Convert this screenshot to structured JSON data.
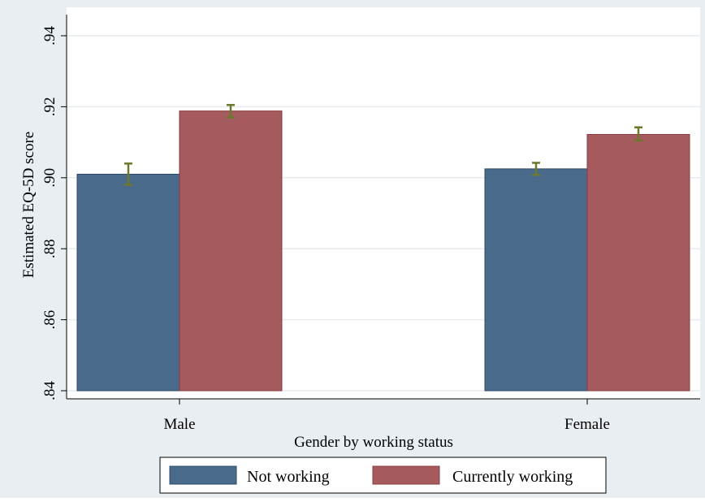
{
  "chart_data": {
    "type": "bar",
    "xlabel": "Gender by working status",
    "ylabel": "Estimated EQ-5D score",
    "ylim": [
      0.84,
      0.94
    ],
    "y_ticks": [
      ".84",
      ".86",
      ".88",
      ".90",
      ".92",
      ".94"
    ],
    "y_tick_values": [
      0.84,
      0.86,
      0.88,
      0.9,
      0.92,
      0.94
    ],
    "categories": [
      "Male",
      "Female"
    ],
    "grid": true,
    "legend_position": "bottom",
    "series": [
      {
        "name": "Not working",
        "color": "#4a6a8c",
        "values": [
          0.901,
          0.9025
        ],
        "ci_low": [
          0.898,
          0.9008
        ],
        "ci_high": [
          0.904,
          0.9042
        ]
      },
      {
        "name": "Currently working",
        "color": "#a55b5d",
        "values": [
          0.9188,
          0.9122
        ],
        "ci_low": [
          0.917,
          0.9105
        ],
        "ci_high": [
          0.9205,
          0.9142
        ]
      }
    ],
    "error_bar_color": "#6b7a2a"
  }
}
